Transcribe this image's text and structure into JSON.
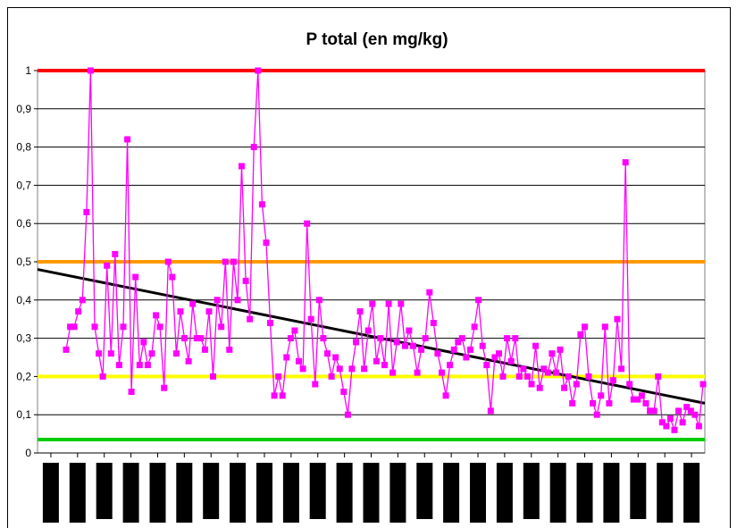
{
  "chart_data": {
    "type": "line",
    "title": "P total (en mg/kg)",
    "xlabel": "",
    "ylabel": "",
    "ylim": [
      0,
      1
    ],
    "y_ticks": [
      "0",
      "0,1",
      "0,2",
      "0,3",
      "0,4",
      "0,5",
      "0,6",
      "0,7",
      "0,8",
      "0,9",
      "1"
    ],
    "x_ticks_redacted": true,
    "grid": "horizontal",
    "colors": {
      "series": "#ff00ff",
      "trend": "#000000",
      "red": "#ff0000",
      "orange": "#ff9900",
      "yellow": "#ffff00",
      "green": "#00cc00"
    },
    "reference_lines": [
      {
        "value": 1.0,
        "color": "#ff0000"
      },
      {
        "value": 0.5,
        "color": "#ff9900"
      },
      {
        "value": 0.2,
        "color": "#ffff00"
      },
      {
        "value": 0.035,
        "color": "#00cc00"
      }
    ],
    "trend": {
      "y_start": 0.48,
      "y_end": 0.13
    },
    "series": [
      {
        "values": [
          0.27,
          0.33,
          0.33,
          0.37,
          0.4,
          0.63,
          1.0,
          0.33,
          0.26,
          0.2,
          0.49,
          0.26,
          0.52,
          0.23,
          0.33,
          0.82,
          0.16,
          0.46,
          0.23,
          0.29,
          0.23,
          0.26,
          0.36,
          0.33,
          0.17,
          0.5,
          0.46,
          0.26,
          0.37,
          0.3,
          0.24,
          0.39,
          0.3,
          0.3,
          0.27,
          0.37,
          0.2,
          0.4,
          0.33,
          0.5,
          0.27,
          0.5,
          0.4,
          0.75,
          0.45,
          0.35,
          0.8,
          1.0,
          0.65,
          0.55,
          0.34,
          0.15,
          0.2,
          0.15,
          0.25,
          0.3,
          0.32,
          0.24,
          0.22,
          0.6,
          0.35,
          0.18,
          0.4,
          0.3,
          0.26,
          0.2,
          0.25,
          0.22,
          0.16,
          0.1,
          0.22,
          0.29,
          0.37,
          0.22,
          0.32,
          0.39,
          0.24,
          0.3,
          0.23,
          0.39,
          0.21,
          0.29,
          0.39,
          0.28,
          0.32,
          0.28,
          0.21,
          0.27,
          0.3,
          0.42,
          0.34,
          0.26,
          0.21,
          0.15,
          0.23,
          0.27,
          0.29,
          0.3,
          0.25,
          0.27,
          0.33,
          0.4,
          0.28,
          0.23,
          0.11,
          0.25,
          0.26,
          0.2,
          0.3,
          0.24,
          0.3,
          0.2,
          0.22,
          0.2,
          0.18,
          0.28,
          0.17,
          0.22,
          0.21,
          0.26,
          0.21,
          0.27,
          0.17,
          0.2,
          0.13,
          0.18,
          0.31,
          0.33,
          0.2,
          0.13,
          0.1,
          0.15,
          0.33,
          0.13,
          0.19,
          0.35,
          0.22,
          0.76,
          0.18,
          0.14,
          0.14,
          0.15,
          0.13,
          0.11,
          0.11,
          0.2,
          0.08,
          0.07,
          0.09,
          0.06,
          0.11,
          0.08,
          0.12,
          0.11,
          0.1,
          0.07,
          0.18
        ]
      }
    ]
  }
}
